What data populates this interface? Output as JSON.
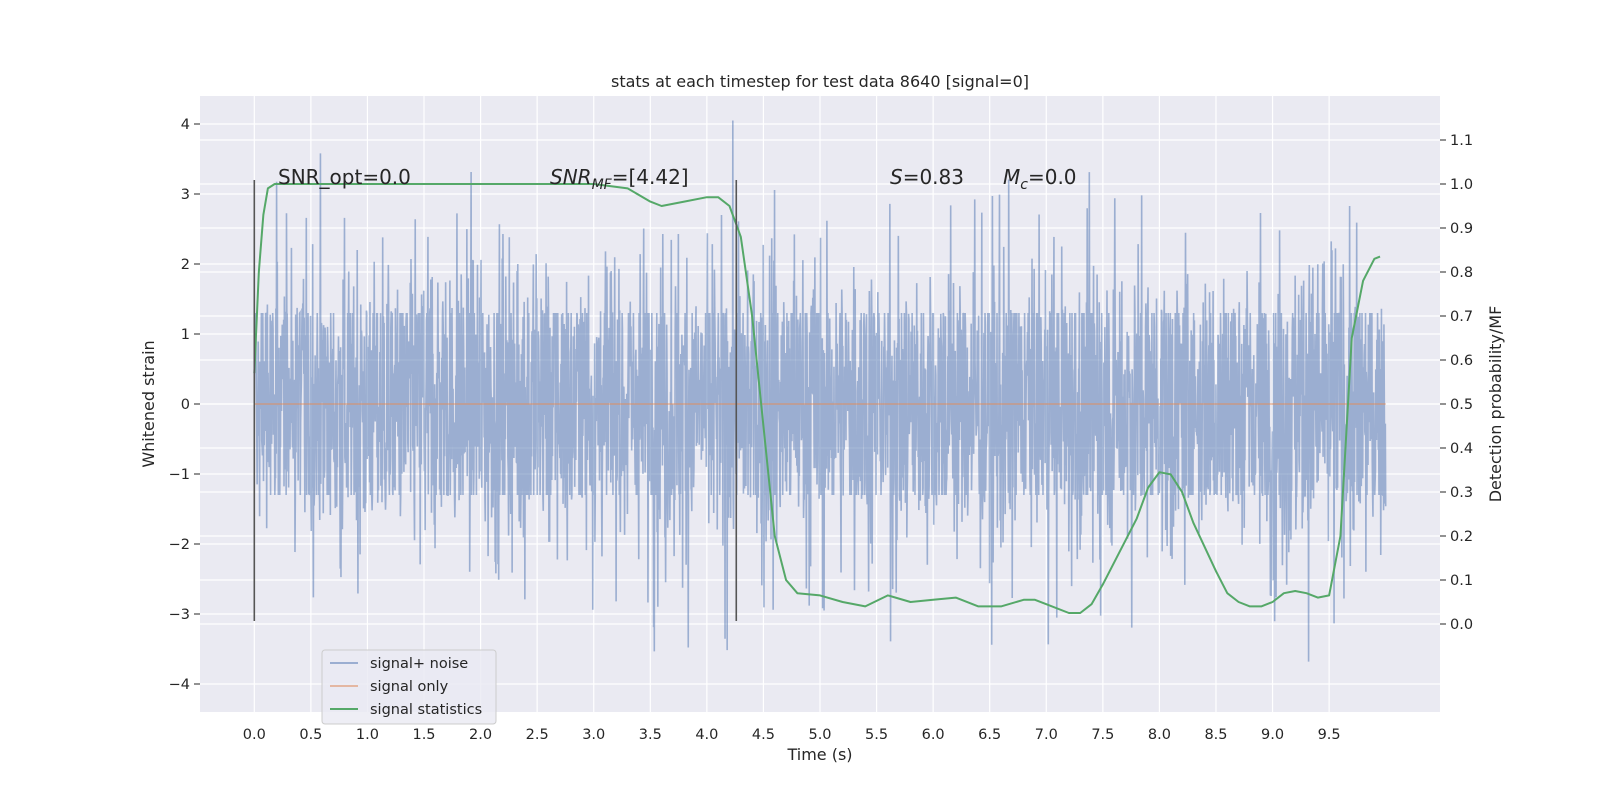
{
  "chart_data": {
    "type": "line",
    "title": "stats at each timestep for test data 8640 [signal=0]",
    "xlabel": "Time (s)",
    "ylabel_left": "Whitened strain",
    "ylabel_right": "Detection probability/MF",
    "xlim": [
      -0.48,
      10.48
    ],
    "ylim_left": [
      -4.4,
      4.4
    ],
    "ylim_right": [
      -0.2,
      1.2
    ],
    "x_ticks": [
      0.0,
      0.5,
      1.0,
      1.5,
      2.0,
      2.5,
      3.0,
      3.5,
      4.0,
      4.5,
      5.0,
      5.5,
      6.0,
      6.5,
      7.0,
      7.5,
      8.0,
      8.5,
      9.0,
      9.5
    ],
    "x_tick_labels": [
      "0.0",
      "0.5",
      "1.0",
      "1.5",
      "2.0",
      "2.5",
      "3.0",
      "3.5",
      "4.0",
      "4.5",
      "5.0",
      "5.5",
      "6.0",
      "6.5",
      "7.0",
      "7.5",
      "8.0",
      "8.5",
      "9.0",
      "9.5"
    ],
    "y_left_ticks": [
      -4,
      -3,
      -2,
      -1,
      0,
      1,
      2,
      3,
      4
    ],
    "y_left_tick_labels": [
      "−4",
      "−3",
      "−2",
      "−1",
      "0",
      "1",
      "2",
      "3",
      "4"
    ],
    "y_right_ticks": [
      0.0,
      0.1,
      0.2,
      0.3,
      0.4,
      0.5,
      0.6,
      0.7,
      0.8,
      0.9,
      1.0,
      1.1
    ],
    "y_right_tick_labels": [
      "0.0",
      "0.1",
      "0.2",
      "0.3",
      "0.4",
      "0.5",
      "0.6",
      "0.7",
      "0.8",
      "0.9",
      "1.0",
      "1.1"
    ],
    "grid": true,
    "legend_position": "lower-left",
    "series": [
      {
        "name": "signal+ noise",
        "axis": "left",
        "color": "#4c72b0",
        "kind": "dense noise trace",
        "x_range": [
          0.0,
          10.0
        ],
        "typical_amplitude": 1.3,
        "peak_extremes": [
          -3.95,
          4.05
        ]
      },
      {
        "name": "signal only",
        "axis": "left",
        "color": "#dd8452",
        "x": [
          0.0,
          10.0
        ],
        "y": [
          0.0,
          0.0
        ]
      },
      {
        "name": "signal statistics",
        "axis": "right",
        "color": "#55a868",
        "x": [
          0.0,
          0.04,
          0.08,
          0.12,
          0.18,
          0.3,
          0.5,
          1.0,
          1.5,
          2.0,
          2.5,
          3.0,
          3.3,
          3.5,
          3.6,
          3.8,
          4.0,
          4.1,
          4.2,
          4.3,
          4.4,
          4.5,
          4.6,
          4.7,
          4.8,
          5.0,
          5.2,
          5.4,
          5.6,
          5.8,
          6.0,
          6.2,
          6.4,
          6.6,
          6.8,
          6.9,
          7.0,
          7.2,
          7.3,
          7.4,
          7.5,
          7.6,
          7.8,
          7.9,
          8.0,
          8.1,
          8.2,
          8.3,
          8.5,
          8.6,
          8.7,
          8.8,
          8.9,
          9.0,
          9.1,
          9.2,
          9.3,
          9.4,
          9.5,
          9.6,
          9.7,
          9.8,
          9.9,
          9.95
        ],
        "y": [
          0.57,
          0.8,
          0.93,
          0.99,
          1.0,
          1.0,
          1.0,
          1.0,
          1.0,
          1.0,
          1.0,
          1.0,
          0.99,
          0.96,
          0.95,
          0.96,
          0.97,
          0.97,
          0.95,
          0.88,
          0.7,
          0.45,
          0.2,
          0.1,
          0.07,
          0.065,
          0.05,
          0.04,
          0.065,
          0.05,
          0.055,
          0.06,
          0.04,
          0.04,
          0.055,
          0.055,
          0.045,
          0.025,
          0.025,
          0.045,
          0.09,
          0.14,
          0.24,
          0.31,
          0.345,
          0.34,
          0.3,
          0.23,
          0.12,
          0.07,
          0.05,
          0.04,
          0.04,
          0.05,
          0.07,
          0.075,
          0.07,
          0.06,
          0.065,
          0.2,
          0.65,
          0.78,
          0.83,
          0.835
        ]
      }
    ],
    "vertical_lines": [
      {
        "x": 0.0,
        "y_range": [
          -3.1,
          3.2
        ],
        "color": "#555555"
      },
      {
        "x": 4.26,
        "y_range": [
          -3.1,
          3.2
        ],
        "color": "#555555"
      }
    ],
    "annotations": {
      "snr_opt": "SNR_opt=0.0",
      "snr_mf_main": "SNR",
      "snr_mf_sub": "MF",
      "snr_mf_value": "=[4.42]",
      "s_var": "S",
      "s_value": "=0.83",
      "mc_var": "M",
      "mc_sub": "c",
      "mc_value": "=0.0"
    }
  }
}
